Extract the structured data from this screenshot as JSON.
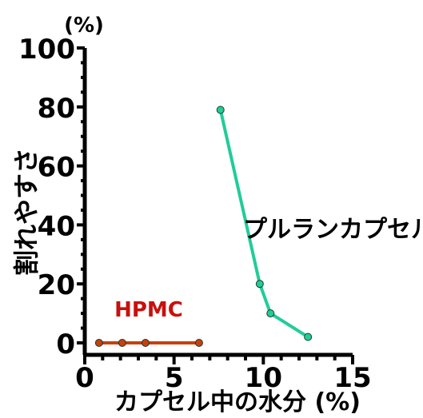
{
  "chart_data": {
    "type": "line",
    "title": "",
    "xlabel": "カプセル中の水分 (%)",
    "ylabel": "割れやすさ",
    "yunit": "(%)",
    "xlim": [
      0,
      15
    ],
    "ylim": [
      0,
      100
    ],
    "xticks": [
      0,
      5,
      10,
      15
    ],
    "yticks": [
      0,
      20,
      40,
      60,
      80,
      100
    ],
    "grid": false,
    "series": [
      {
        "name": "HPMC",
        "color": "#c8400c",
        "x": [
          0.8,
          2.1,
          3.4,
          6.4
        ],
        "y": [
          0,
          0,
          0,
          0
        ]
      },
      {
        "name": "プルランカプセル",
        "color": "#22cc99",
        "x": [
          7.6,
          9.8,
          10.4,
          12.5
        ],
        "y": [
          79,
          20,
          10,
          2
        ]
      }
    ]
  }
}
